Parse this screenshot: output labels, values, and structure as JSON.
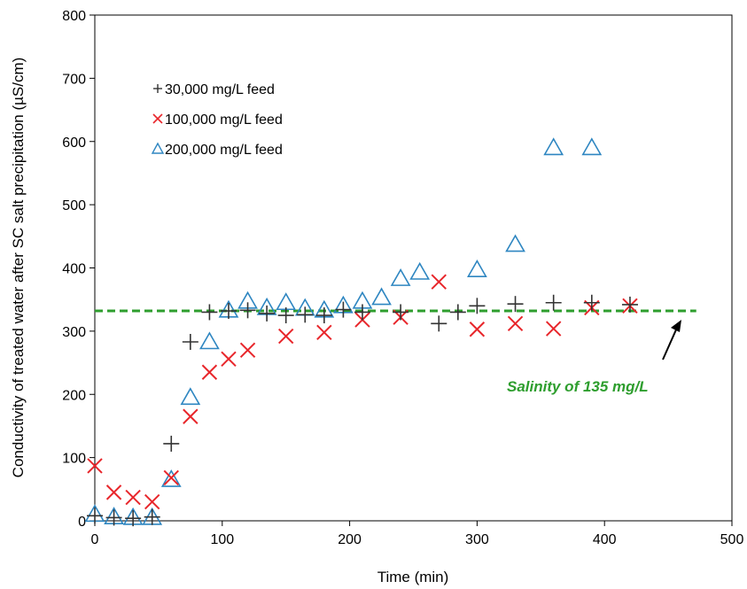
{
  "chart_data": {
    "type": "scatter",
    "xlabel": "Time (min)",
    "ylabel": "Conductivity of treated water after SC salt precipitation (µS/cm)",
    "xlim": [
      0,
      500
    ],
    "ylim": [
      0,
      800
    ],
    "xticks": [
      "0",
      "100",
      "200",
      "300",
      "400",
      "500"
    ],
    "yticks": [
      "0",
      "100",
      "200",
      "300",
      "400",
      "500",
      "600",
      "700",
      "800"
    ],
    "grid": false,
    "legend_position": "top-left",
    "series": [
      {
        "name": "30,000 mg/L feed",
        "marker": "plus",
        "color": "#333333",
        "points": [
          [
            0,
            8
          ],
          [
            15,
            5
          ],
          [
            30,
            4
          ],
          [
            45,
            6
          ],
          [
            60,
            122
          ],
          [
            75,
            283
          ],
          [
            90,
            330
          ],
          [
            105,
            332
          ],
          [
            120,
            333
          ],
          [
            135,
            328
          ],
          [
            150,
            325
          ],
          [
            165,
            326
          ],
          [
            180,
            325
          ],
          [
            195,
            334
          ],
          [
            210,
            330
          ],
          [
            240,
            330
          ],
          [
            270,
            312
          ],
          [
            285,
            330
          ],
          [
            300,
            340
          ],
          [
            330,
            343
          ],
          [
            360,
            345
          ],
          [
            390,
            345
          ],
          [
            420,
            342
          ]
        ]
      },
      {
        "name": "100,000 mg/L feed",
        "marker": "cross",
        "color": "#e8262b",
        "points": [
          [
            0,
            87
          ],
          [
            15,
            45
          ],
          [
            30,
            37
          ],
          [
            45,
            30
          ],
          [
            60,
            68
          ],
          [
            75,
            165
          ],
          [
            90,
            235
          ],
          [
            105,
            256
          ],
          [
            120,
            270
          ],
          [
            150,
            292
          ],
          [
            180,
            298
          ],
          [
            210,
            318
          ],
          [
            240,
            322
          ],
          [
            270,
            378
          ],
          [
            300,
            303
          ],
          [
            330,
            312
          ],
          [
            360,
            304
          ],
          [
            390,
            337
          ],
          [
            420,
            340
          ]
        ]
      },
      {
        "name": "200,000 mg/L feed",
        "marker": "triangle",
        "color": "#2e86c1",
        "points": [
          [
            0,
            10
          ],
          [
            15,
            6
          ],
          [
            30,
            5
          ],
          [
            45,
            5
          ],
          [
            60,
            65
          ],
          [
            75,
            195
          ],
          [
            90,
            283
          ],
          [
            105,
            333
          ],
          [
            120,
            347
          ],
          [
            135,
            337
          ],
          [
            150,
            345
          ],
          [
            165,
            336
          ],
          [
            180,
            333
          ],
          [
            195,
            340
          ],
          [
            210,
            347
          ],
          [
            225,
            353
          ],
          [
            240,
            383
          ],
          [
            255,
            393
          ],
          [
            300,
            397
          ],
          [
            330,
            437
          ],
          [
            360,
            590
          ],
          [
            390,
            590
          ]
        ]
      }
    ],
    "reference_line": {
      "y": 332,
      "x_range": [
        0,
        472
      ],
      "color": "#2e9e2e",
      "style": "dashed"
    },
    "annotation": {
      "text": "Salinity of 135 mg/L",
      "color": "#2e9e2e"
    }
  }
}
